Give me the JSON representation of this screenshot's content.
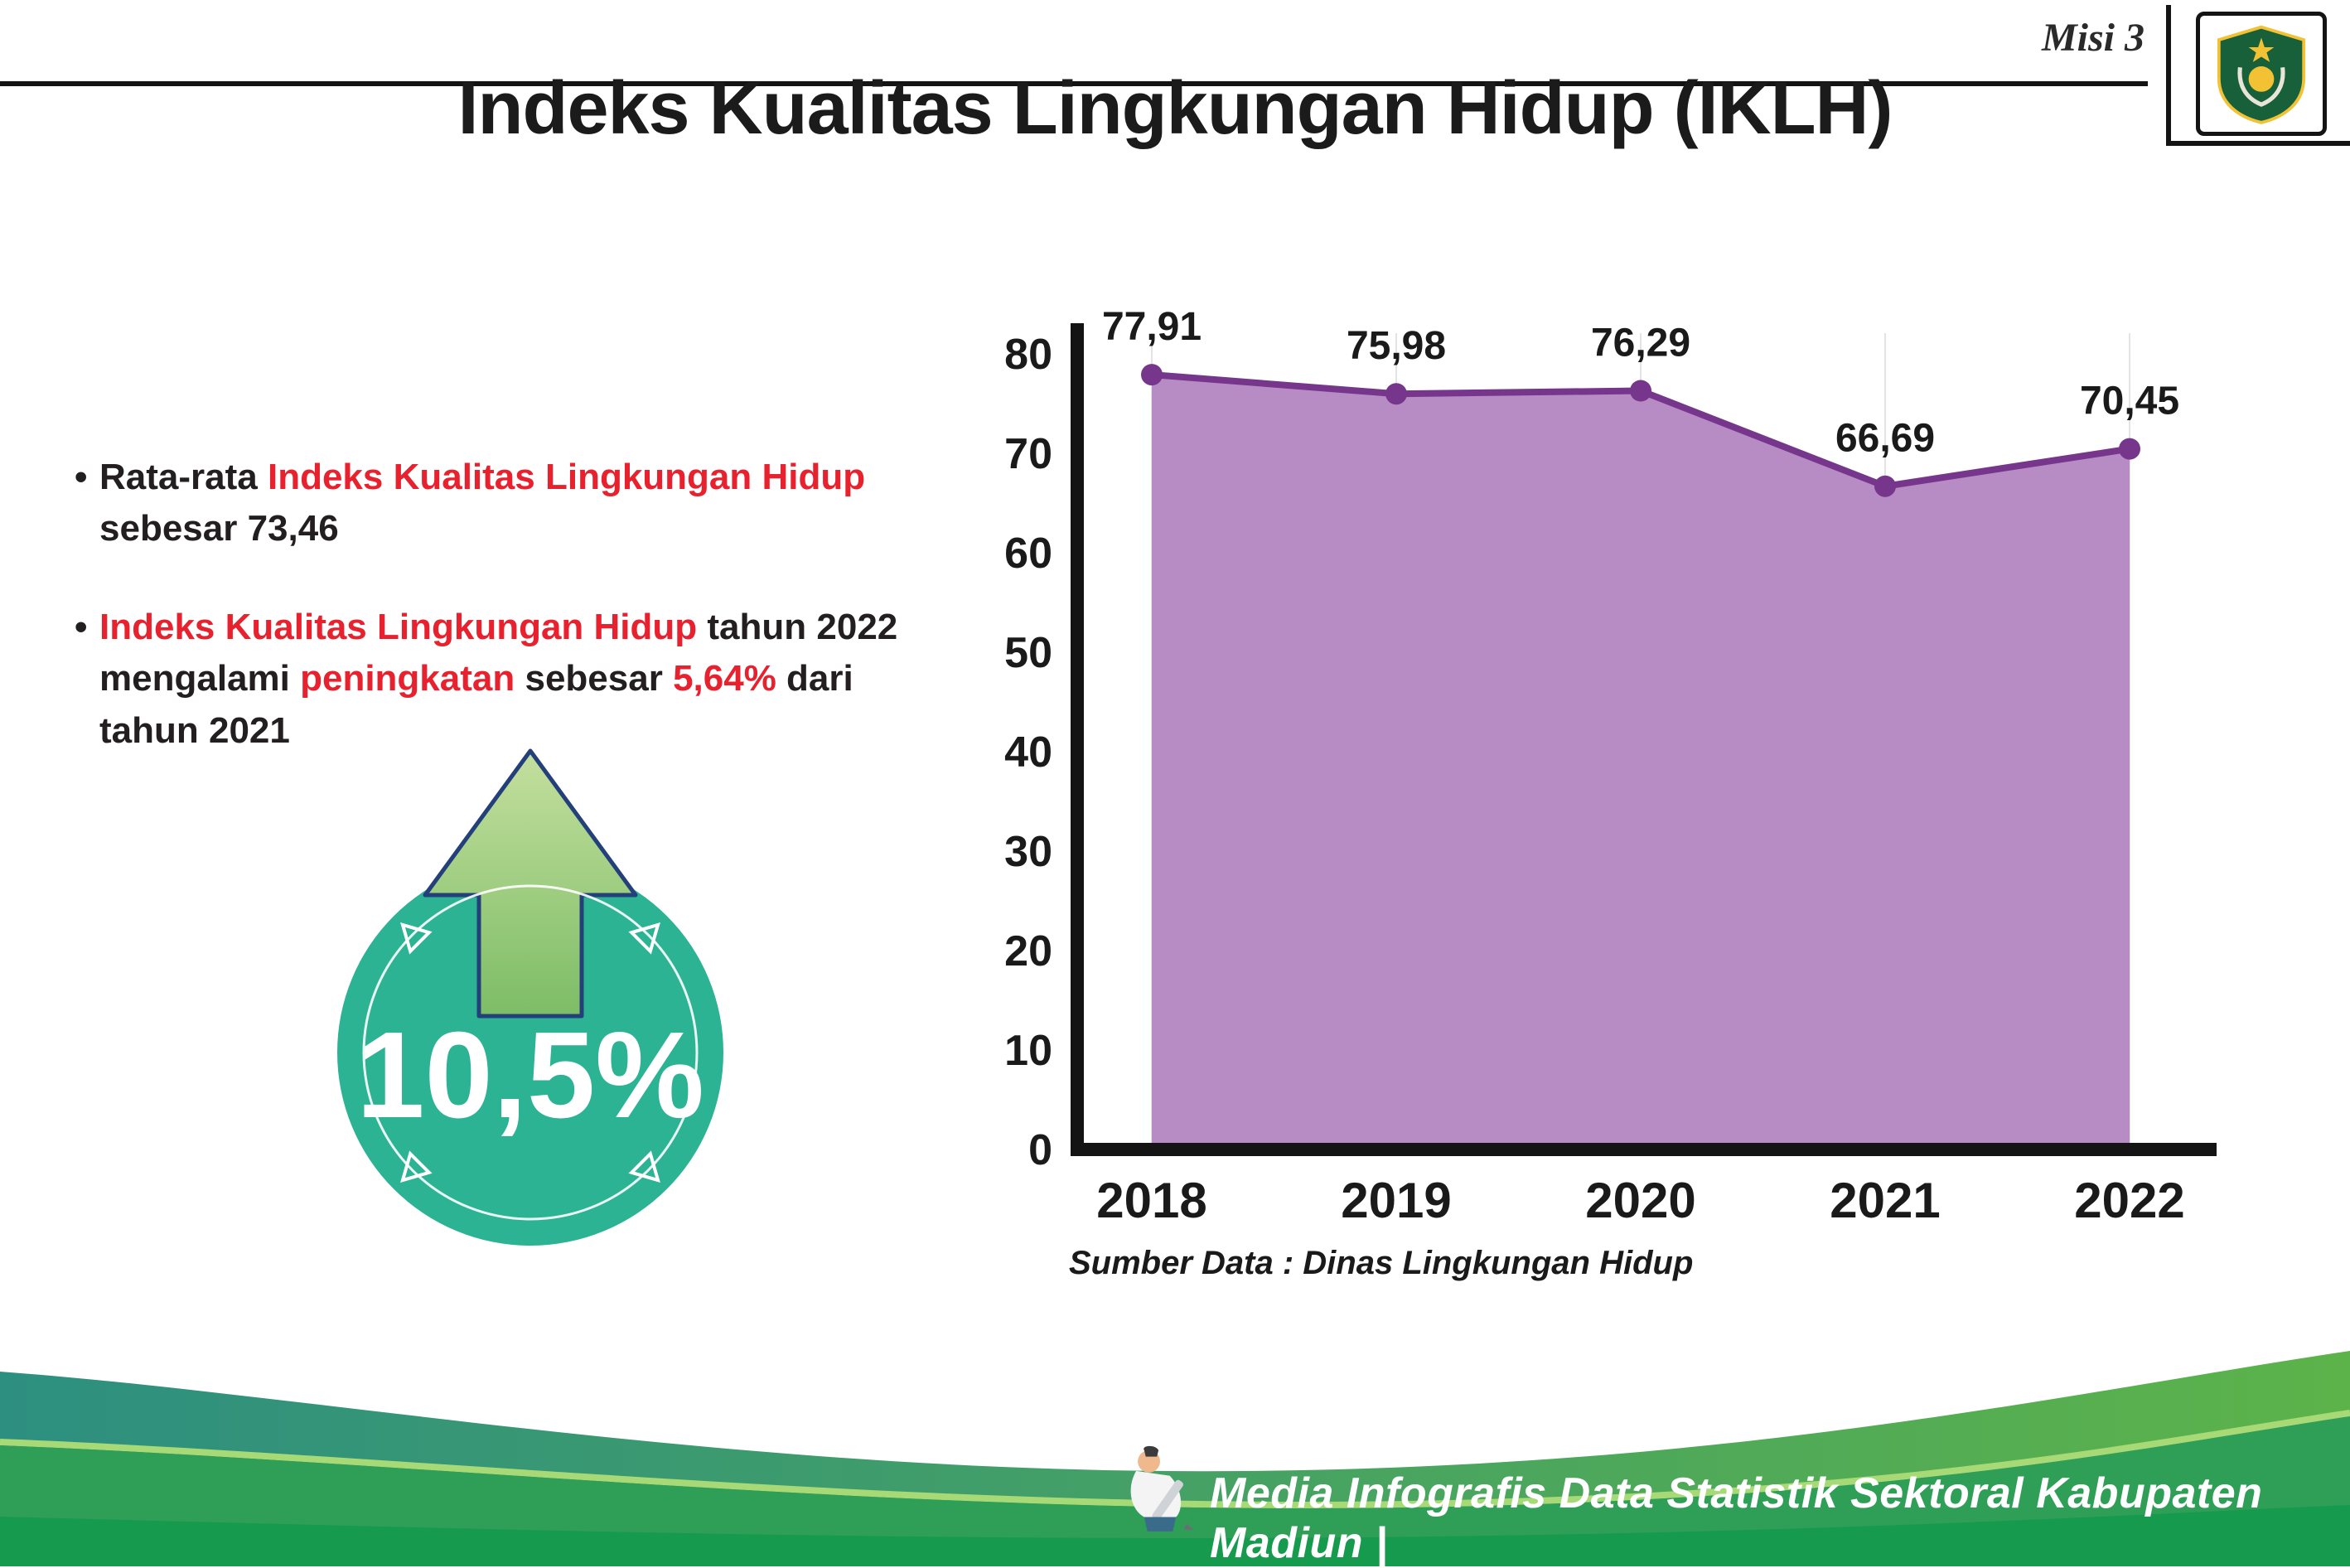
{
  "header": {
    "misi": "Misi 3",
    "title": "Indeks Kualitas Lingkungan Hidup (IKLH)",
    "logo_name": "Kabupaten Madiun"
  },
  "bullets": {
    "marker": "•",
    "b1": {
      "t1": "Rata-rata ",
      "r1": "Indeks Kualitas Lingkungan Hidup",
      "t2": " sebesar 73,46"
    },
    "b2": {
      "r1": "Indeks Kualitas Lingkungan Hidup",
      "t1": " tahun 2022 mengalami ",
      "r2": "peningkatan",
      "t2": " sebesar ",
      "r3": "5,64%",
      "t3": " dari tahun 2021"
    }
  },
  "badge": {
    "value": "10,5%",
    "circle_color": "#2bb394",
    "arrow_color": "#8fc878"
  },
  "chart_data": {
    "type": "area",
    "categories": [
      "2018",
      "2019",
      "2020",
      "2021",
      "2022"
    ],
    "values": [
      77.91,
      75.98,
      76.29,
      66.69,
      70.45
    ],
    "value_labels": [
      "77,91",
      "75,98",
      "76,29",
      "66,69",
      "70,45"
    ],
    "ylim": [
      0,
      80
    ],
    "yticks": [
      0,
      10,
      20,
      30,
      40,
      50,
      60,
      70,
      80
    ],
    "grid": "faint vertical gridlines per year",
    "legend": "none",
    "area_color": "#b78cc4",
    "line_color": "#76368c",
    "source": "Sumber Data : Dinas Lingkungan Hidup"
  },
  "footer": {
    "credit": "Media Infografis Data Statistik Sektoral Kabupaten Madiun |"
  },
  "colors": {
    "highlight_red": "#e8212e",
    "text_dark": "#231f20",
    "footer_teal": "#2d8f80",
    "footer_green": "#5cb34a"
  }
}
